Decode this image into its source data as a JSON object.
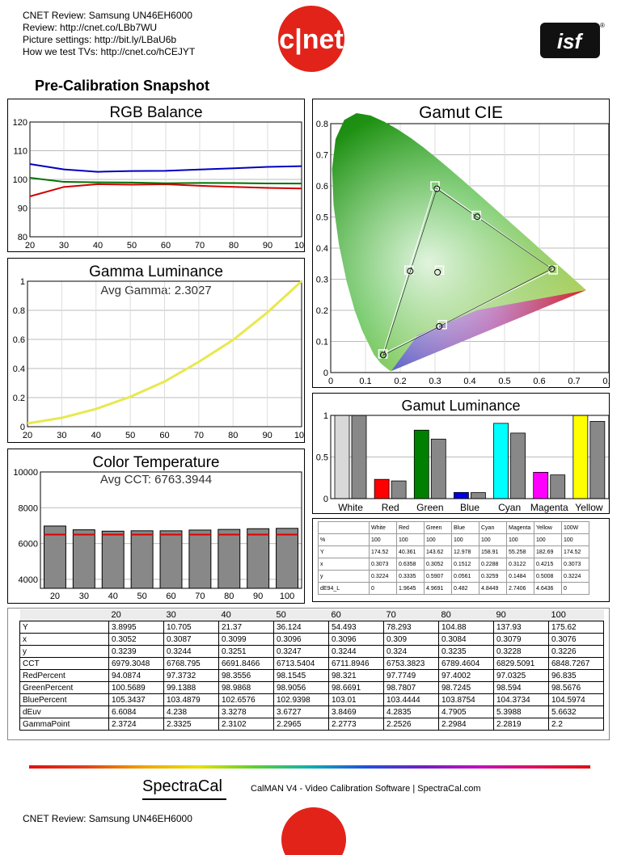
{
  "header": {
    "lines": [
      "CNET Review: Samsung UN46EH6000",
      "Review: http://cnet.co/LBb7WU",
      "Picture settings: http://bit.ly/LBaU6b",
      "How we test TVs: http://cnet.co/hCEJYT"
    ],
    "cnet_logo_text": "c|net",
    "isf_logo_text": "isf",
    "registered_mark": "®"
  },
  "snapshot_title": "Pre-Calibration Snapshot",
  "chart_data": [
    {
      "type": "line",
      "title": "RGB Balance",
      "x": [
        20,
        30,
        40,
        50,
        60,
        70,
        80,
        90,
        100
      ],
      "xlim": [
        20,
        100
      ],
      "ylim": [
        80,
        120
      ],
      "yticks": [
        80,
        90,
        100,
        110,
        120
      ],
      "grid": true,
      "series": [
        {
          "color": "#d00000",
          "values": [
            94.0874,
            97.3732,
            98.3556,
            98.1545,
            98.321,
            97.7749,
            97.4002,
            97.0325,
            96.835
          ]
        },
        {
          "color": "#007000",
          "values": [
            100.5689,
            99.1388,
            98.9868,
            98.9056,
            98.6691,
            98.7807,
            98.7245,
            98.594,
            98.5676
          ]
        },
        {
          "color": "#0000c0",
          "values": [
            105.3437,
            103.4879,
            102.6576,
            102.9398,
            103.01,
            103.4444,
            103.8754,
            104.3734,
            104.5974
          ]
        }
      ]
    },
    {
      "type": "line",
      "title": "Gamma Luminance",
      "subtitle": "Avg Gamma: 2.3027",
      "x": [
        20,
        30,
        40,
        50,
        60,
        70,
        80,
        90,
        100
      ],
      "xlim": [
        20,
        100
      ],
      "ylim": [
        0,
        1
      ],
      "yticks": [
        0,
        0.2,
        0.4,
        0.6,
        0.8,
        1
      ],
      "grid": true,
      "series": [
        {
          "color": "#e8e850",
          "values": [
            0.0222,
            0.0609,
            0.1219,
            0.2056,
            0.3102,
            0.4457,
            0.5966,
            0.7851,
            1.0
          ]
        }
      ]
    },
    {
      "type": "bar",
      "title": "Color Temperature",
      "subtitle": "Avg CCT: 6763.3944",
      "categories": [
        "20",
        "30",
        "40",
        "50",
        "60",
        "70",
        "80",
        "90",
        "100"
      ],
      "values": [
        6979.3048,
        6768.795,
        6691.8466,
        6713.5404,
        6711.8946,
        6753.3823,
        6789.4604,
        6829.5091,
        6848.7267
      ],
      "target": 6504,
      "ylim": [
        3500,
        10000
      ],
      "yticks": [
        4000,
        6000,
        8000,
        10000
      ],
      "grid": true
    },
    {
      "type": "scatter",
      "title": "Gamut CIE",
      "xlim": [
        0,
        0.8
      ],
      "ylim": [
        0,
        0.8
      ],
      "xticks": [
        0,
        0.1,
        0.2,
        0.3,
        0.4,
        0.5,
        0.6,
        0.7,
        0.8
      ],
      "yticks": [
        0,
        0.1,
        0.2,
        0.3,
        0.4,
        0.5,
        0.6,
        0.7,
        0.8
      ],
      "targets": [
        {
          "x": 0.64,
          "y": 0.33
        },
        {
          "x": 0.3,
          "y": 0.6
        },
        {
          "x": 0.15,
          "y": 0.06
        },
        {
          "x": 0.225,
          "y": 0.329
        },
        {
          "x": 0.321,
          "y": 0.154
        },
        {
          "x": 0.419,
          "y": 0.505
        },
        {
          "x": 0.3127,
          "y": 0.329
        }
      ],
      "measured": [
        {
          "x": 0.6358,
          "y": 0.3335
        },
        {
          "x": 0.3052,
          "y": 0.5907
        },
        {
          "x": 0.1512,
          "y": 0.0561
        },
        {
          "x": 0.2288,
          "y": 0.3259
        },
        {
          "x": 0.3122,
          "y": 0.1484
        },
        {
          "x": 0.4215,
          "y": 0.5008
        },
        {
          "x": 0.3073,
          "y": 0.3224
        }
      ]
    },
    {
      "type": "bar",
      "title": "Gamut Luminance",
      "categories": [
        "White",
        "Red",
        "Green",
        "Blue",
        "Cyan",
        "Magenta",
        "Yellow"
      ],
      "colors": [
        "#d8d8d8",
        "#ff0000",
        "#008000",
        "#0000e0",
        "#00ffff",
        "#ff00ff",
        "#ffff00"
      ],
      "target": [
        1,
        0.2126,
        0.7152,
        0.0722,
        0.7874,
        0.2848,
        0.9278
      ],
      "measured": [
        1,
        0.2311,
        0.8226,
        0.0743,
        0.9043,
        0.3165,
        1.0472
      ],
      "ylim": [
        0,
        1
      ],
      "yticks": [
        0,
        0.5,
        1
      ]
    }
  ],
  "gamut_table": {
    "headers": [
      "",
      "White",
      "Red",
      "Green",
      "Blue",
      "Cyan",
      "Magenta",
      "Yellow",
      "100W"
    ],
    "rows": [
      [
        "%",
        "100",
        "100",
        "100",
        "100",
        "100",
        "100",
        "100",
        "100"
      ],
      [
        "Y",
        "174.52",
        "40.361",
        "143.62",
        "12.978",
        "158.91",
        "55.258",
        "182.69",
        "174.52"
      ],
      [
        "x",
        "0.3073",
        "0.6358",
        "0.3052",
        "0.1512",
        "0.2288",
        "0.3122",
        "0.4215",
        "0.3073"
      ],
      [
        "y",
        "0.3224",
        "0.3335",
        "0.5907",
        "0.0561",
        "0.3259",
        "0.1484",
        "0.5008",
        "0.3224"
      ],
      [
        "dE94_L",
        "0",
        "1.9645",
        "4.9691",
        "0.482",
        "4.8449",
        "2.7406",
        "4.6436",
        "0"
      ]
    ]
  },
  "main_table": {
    "headers": [
      "",
      "20",
      "30",
      "40",
      "50",
      "60",
      "70",
      "80",
      "90",
      "100"
    ],
    "rows": [
      [
        "Y",
        "3.8995",
        "10.705",
        "21.37",
        "36.124",
        "54.493",
        "78.293",
        "104.88",
        "137.93",
        "175.62"
      ],
      [
        "x",
        "0.3052",
        "0.3087",
        "0.3099",
        "0.3096",
        "0.3096",
        "0.309",
        "0.3084",
        "0.3079",
        "0.3076"
      ],
      [
        "y",
        "0.3239",
        "0.3244",
        "0.3251",
        "0.3247",
        "0.3244",
        "0.324",
        "0.3235",
        "0.3228",
        "0.3226"
      ],
      [
        "CCT",
        "6979.3048",
        "6768.795",
        "6691.8466",
        "6713.5404",
        "6711.8946",
        "6753.3823",
        "6789.4604",
        "6829.5091",
        "6848.7267"
      ],
      [
        "RedPercent",
        "94.0874",
        "97.3732",
        "98.3556",
        "98.1545",
        "98.321",
        "97.7749",
        "97.4002",
        "97.0325",
        "96.835"
      ],
      [
        "GreenPercent",
        "100.5689",
        "99.1388",
        "98.9868",
        "98.9056",
        "98.6691",
        "98.7807",
        "98.7245",
        "98.594",
        "98.5676"
      ],
      [
        "BluePercent",
        "105.3437",
        "103.4879",
        "102.6576",
        "102.9398",
        "103.01",
        "103.4444",
        "103.8754",
        "104.3734",
        "104.5974"
      ],
      [
        "dEuv",
        "6.6084",
        "4.238",
        "3.3278",
        "3.6727",
        "3.8469",
        "4.2835",
        "4.7905",
        "5.3988",
        "5.6632"
      ],
      [
        "GammaPoint",
        "2.3724",
        "2.3325",
        "2.3102",
        "2.2965",
        "2.2773",
        "2.2526",
        "2.2984",
        "2.2819",
        "2.2"
      ]
    ]
  },
  "footer": {
    "brand": "SpectraCal",
    "tagline": "CalMAN V4 - Video Calibration Software | SpectraCal.com",
    "lines": [
      "CNET Review: Samsung UN46EH6000"
    ]
  }
}
